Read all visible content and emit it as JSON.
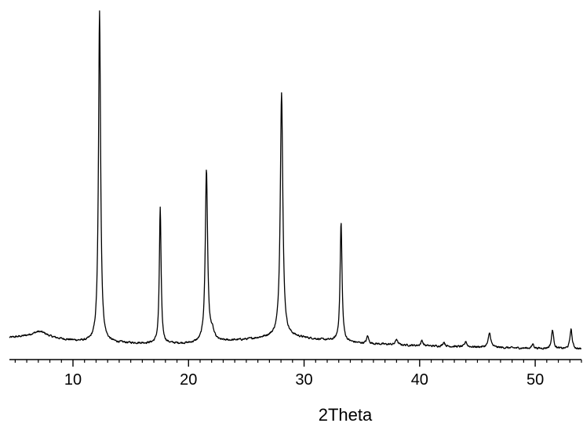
{
  "chart_data": {
    "type": "line",
    "title": "",
    "xlabel": "2Theta",
    "ylabel": "",
    "xlim": [
      4.5,
      54.0
    ],
    "ylim": [
      0,
      100
    ],
    "grid": false,
    "legend": "none",
    "x_ticks": [
      10,
      20,
      30,
      40,
      50
    ],
    "x_tick_labels": [
      "10",
      "20",
      "30",
      "40",
      "50"
    ],
    "x_minor_step": 1,
    "series": [
      {
        "line_color": "#000000",
        "baseline": [
          [
            4.5,
            3.6
          ],
          [
            7.0,
            4.1
          ],
          [
            8.0,
            3.4
          ],
          [
            11.0,
            2.4
          ],
          [
            14.0,
            2.1
          ],
          [
            17.0,
            1.9
          ],
          [
            20.0,
            1.9
          ],
          [
            23.0,
            2.6
          ],
          [
            25.0,
            3.1
          ],
          [
            27.0,
            3.8
          ],
          [
            29.0,
            3.9
          ],
          [
            31.0,
            3.2
          ],
          [
            33.0,
            2.5
          ],
          [
            35.0,
            2.0
          ],
          [
            40.0,
            1.3
          ],
          [
            45.0,
            0.9
          ],
          [
            50.0,
            0.5
          ],
          [
            54.0,
            0.3
          ]
        ],
        "peaks": [
          {
            "x": 7.2,
            "height": 1.4,
            "width": 0.9
          },
          {
            "x": 12.3,
            "height": 97.0,
            "width": 0.11
          },
          {
            "x": 17.55,
            "height": 40.0,
            "width": 0.09
          },
          {
            "x": 21.55,
            "height": 50.5,
            "width": 0.12
          },
          {
            "x": 22.05,
            "height": 2.5,
            "width": 0.2
          },
          {
            "x": 28.05,
            "height": 72.0,
            "width": 0.13
          },
          {
            "x": 33.2,
            "height": 35.0,
            "width": 0.1
          },
          {
            "x": 35.5,
            "height": 2.2,
            "width": 0.1
          },
          {
            "x": 38.0,
            "height": 1.7,
            "width": 0.1
          },
          {
            "x": 40.2,
            "height": 1.6,
            "width": 0.1
          },
          {
            "x": 42.1,
            "height": 1.3,
            "width": 0.1
          },
          {
            "x": 44.0,
            "height": 1.6,
            "width": 0.1
          },
          {
            "x": 46.05,
            "height": 4.2,
            "width": 0.13
          },
          {
            "x": 49.8,
            "height": 1.3,
            "width": 0.1
          },
          {
            "x": 51.5,
            "height": 5.5,
            "width": 0.11
          },
          {
            "x": 53.1,
            "height": 5.8,
            "width": 0.11
          }
        ]
      }
    ]
  }
}
